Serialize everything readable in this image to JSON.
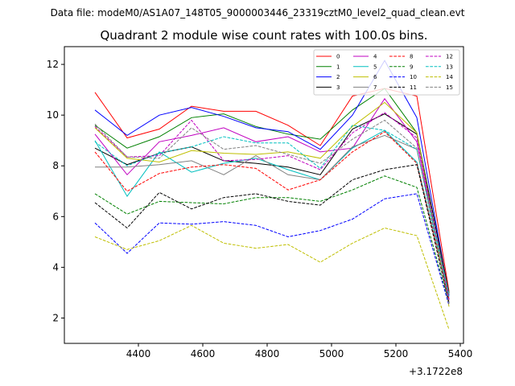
{
  "figure": {
    "suptitle": "Data file: modeM0/AS1A07_148T05_9000003446_23319cztM0_level2_quad_clean.evt"
  },
  "chart_data": {
    "type": "line",
    "title": "Quadrant 2 module wise count rates with 100.0s bins.",
    "xlabel": "",
    "ylabel": "",
    "x_offset_label": "+3.1722e8",
    "x_offset": 317220000,
    "x": [
      4265,
      4365,
      4465,
      4565,
      4665,
      4765,
      4865,
      4965,
      5065,
      5165,
      5265,
      5365
    ],
    "xlim": [
      4170,
      5410
    ],
    "ylim": [
      1.0,
      12.7
    ],
    "xticks": [
      4400,
      4600,
      4800,
      5000,
      5200,
      5400
    ],
    "yticks": [
      2,
      4,
      6,
      8,
      10,
      12
    ],
    "grid": false,
    "legend_placement": "top-right",
    "legend_columns": 4,
    "series": [
      {
        "name": "0",
        "color": "#ff0000",
        "linestyle": "solid",
        "values": [
          10.9,
          9.1,
          9.45,
          10.35,
          10.15,
          10.15,
          9.6,
          8.8,
          10.75,
          11.05,
          10.75,
          3.05
        ]
      },
      {
        "name": "1",
        "color": "#008000",
        "linestyle": "solid",
        "values": [
          9.6,
          8.7,
          9.15,
          9.9,
          10.05,
          9.55,
          9.25,
          9.05,
          10.2,
          11.05,
          9.3,
          2.95
        ]
      },
      {
        "name": "2",
        "color": "#0000ff",
        "linestyle": "solid",
        "values": [
          10.2,
          9.2,
          10.0,
          10.3,
          9.95,
          9.5,
          9.35,
          8.65,
          10.0,
          12.15,
          9.9,
          2.9
        ]
      },
      {
        "name": "3",
        "color": "#000000",
        "linestyle": "solid",
        "values": [
          8.7,
          8.05,
          8.5,
          8.75,
          8.2,
          8.1,
          7.95,
          7.65,
          9.45,
          10.05,
          9.25,
          3.0
        ]
      },
      {
        "name": "4",
        "color": "#c000c0",
        "linestyle": "solid",
        "values": [
          9.25,
          7.65,
          8.95,
          9.2,
          9.5,
          8.95,
          9.15,
          8.55,
          8.7,
          10.65,
          8.95,
          2.7
        ]
      },
      {
        "name": "5",
        "color": "#00bfbf",
        "linestyle": "solid",
        "values": [
          9.0,
          6.8,
          8.55,
          7.75,
          8.1,
          8.3,
          7.85,
          7.45,
          8.7,
          9.4,
          8.15,
          2.85
        ]
      },
      {
        "name": "6",
        "color": "#bfbf00",
        "linestyle": "solid",
        "values": [
          9.5,
          8.3,
          8.15,
          8.6,
          8.5,
          8.45,
          8.55,
          8.3,
          9.55,
          10.5,
          9.3,
          2.45
        ]
      },
      {
        "name": "7",
        "color": "#808080",
        "linestyle": "solid",
        "values": [
          7.95,
          7.95,
          8.05,
          8.2,
          7.65,
          8.4,
          7.65,
          7.45,
          8.75,
          9.2,
          8.65,
          2.95
        ]
      },
      {
        "name": "8",
        "color": "#ff0000",
        "linestyle": "dashed",
        "values": [
          8.55,
          7.0,
          7.7,
          7.95,
          8.05,
          7.9,
          7.05,
          7.45,
          8.55,
          9.35,
          8.1,
          2.75
        ]
      },
      {
        "name": "9",
        "color": "#008000",
        "linestyle": "dashed",
        "values": [
          6.9,
          6.1,
          6.6,
          6.55,
          6.5,
          6.75,
          6.75,
          6.6,
          7.05,
          7.6,
          7.15,
          2.6
        ]
      },
      {
        "name": "10",
        "color": "#0000ff",
        "linestyle": "dashed",
        "values": [
          5.75,
          4.55,
          5.75,
          5.7,
          5.8,
          5.65,
          5.2,
          5.45,
          5.9,
          6.7,
          6.9,
          2.5
        ]
      },
      {
        "name": "11",
        "color": "#000000",
        "linestyle": "dashed",
        "values": [
          6.55,
          5.55,
          6.95,
          6.3,
          6.75,
          6.9,
          6.6,
          6.45,
          7.45,
          7.85,
          8.05,
          2.6
        ]
      },
      {
        "name": "12",
        "color": "#c000c0",
        "linestyle": "dashed",
        "values": [
          9.55,
          8.35,
          8.4,
          9.8,
          8.2,
          8.25,
          8.4,
          7.85,
          9.3,
          10.1,
          9.1,
          2.75
        ]
      },
      {
        "name": "13",
        "color": "#00bfbf",
        "linestyle": "dashed",
        "values": [
          8.95,
          8.0,
          8.5,
          8.75,
          9.15,
          8.9,
          8.9,
          7.9,
          9.6,
          9.4,
          8.65,
          2.85
        ]
      },
      {
        "name": "14",
        "color": "#bfbf00",
        "linestyle": "dashed",
        "values": [
          5.2,
          4.7,
          5.05,
          5.65,
          4.95,
          4.75,
          4.9,
          4.2,
          4.95,
          5.55,
          5.25,
          1.55
        ]
      },
      {
        "name": "15",
        "color": "#808080",
        "linestyle": "dashed",
        "values": [
          9.65,
          8.35,
          8.3,
          9.5,
          8.65,
          8.8,
          8.45,
          8.1,
          9.05,
          9.8,
          8.7,
          2.55
        ]
      }
    ]
  }
}
